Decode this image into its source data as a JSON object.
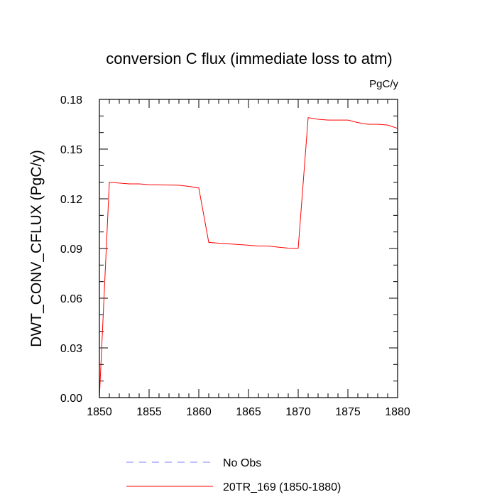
{
  "chart_data": {
    "type": "line",
    "title": "conversion C flux (immediate loss to atm)",
    "units": "PgC/y",
    "xlabel": "",
    "ylabel": "DWT_CONV_CFLUX  (PgC/y)",
    "xlim": [
      1850,
      1880
    ],
    "ylim": [
      0,
      0.18
    ],
    "xticks": [
      1850,
      1855,
      1860,
      1865,
      1870,
      1875,
      1880
    ],
    "xtick_labels": [
      "1850",
      "1855",
      "1860",
      "1865",
      "1870",
      "1875",
      "1880"
    ],
    "yticks": [
      0,
      0.03,
      0.06,
      0.09,
      0.12,
      0.15,
      0.18
    ],
    "ytick_labels": [
      "0.00",
      "0.03",
      "0.06",
      "0.09",
      "0.12",
      "0.15",
      "0.18"
    ],
    "grid": false,
    "legend_position": "bottom",
    "series": [
      {
        "name": "No Obs",
        "color": "#7f7fff",
        "dash": "dashed",
        "x": [],
        "y": []
      },
      {
        "name": "20TR_169 (1850-1880)",
        "color": "#ff0000",
        "dash": "solid",
        "x": [
          1850,
          1851,
          1852,
          1853,
          1854,
          1855,
          1856,
          1857,
          1858,
          1859,
          1860,
          1861,
          1862,
          1863,
          1864,
          1865,
          1866,
          1867,
          1868,
          1869,
          1870,
          1871,
          1872,
          1873,
          1874,
          1875,
          1876,
          1877,
          1878,
          1879,
          1880
        ],
        "y": [
          0.0,
          0.13,
          0.1295,
          0.129,
          0.129,
          0.1285,
          0.1284,
          0.1283,
          0.1282,
          0.1275,
          0.1265,
          0.0937,
          0.0932,
          0.0928,
          0.0924,
          0.092,
          0.0915,
          0.0915,
          0.0908,
          0.0902,
          0.0901,
          0.169,
          0.168,
          0.1675,
          0.1675,
          0.1675,
          0.166,
          0.165,
          0.165,
          0.1645,
          0.1625
        ]
      }
    ]
  }
}
